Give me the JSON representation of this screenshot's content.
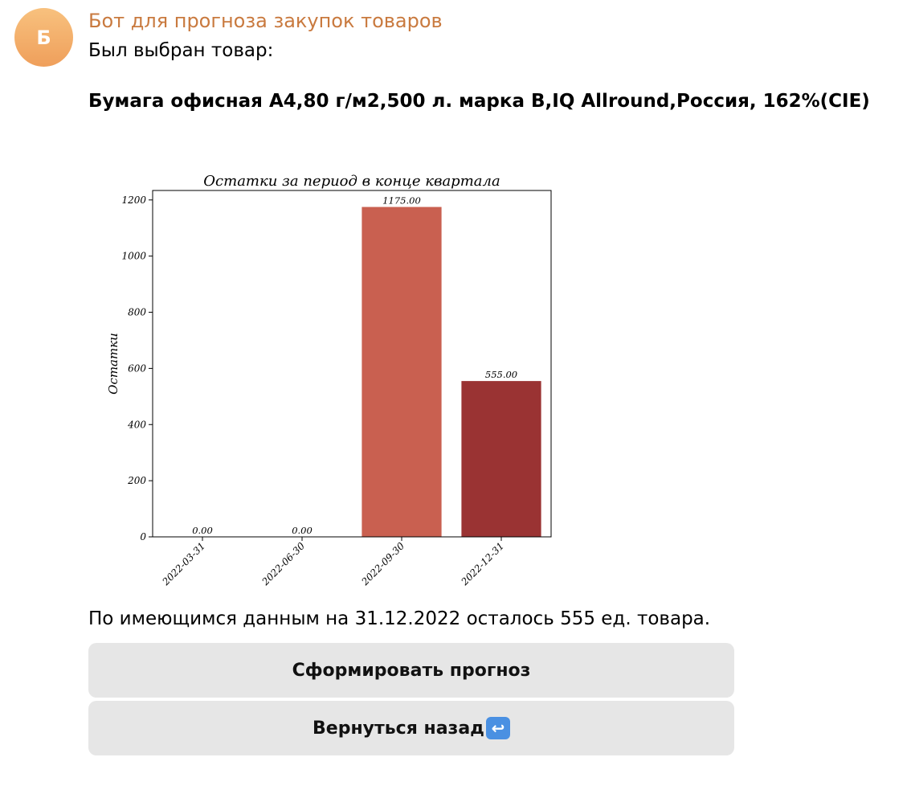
{
  "message": {
    "avatar_letter": "Б",
    "sender": "Бот для прогноза закупок товаров",
    "line1": "Был выбран товар:",
    "product": "Бумага офисная А4,80 г/м2,500 л. марка В,IQ Allround,Россия, 162%(CIE)",
    "summary": "По имеющимся данным на 31.12.2022 осталось 555 ед. товара."
  },
  "buttons": {
    "forecast": "Сформировать прогноз",
    "back": "Вернуться назад",
    "back_icon": "return-arrow-icon"
  },
  "colors": {
    "sender": "#c97a3f",
    "button_bg": "#e6e6e6"
  },
  "chart_data": {
    "type": "bar",
    "title": "Остатки за период в конце квартала",
    "ylabel": "Остатки",
    "xlabel": "",
    "categories": [
      "2022-03-31",
      "2022-06-30",
      "2022-09-30",
      "2022-12-31"
    ],
    "values": [
      0,
      0,
      1175,
      555
    ],
    "value_labels": [
      "0.00",
      "0.00",
      "1175.00",
      "555.00"
    ],
    "colors": [
      "#e8a88f",
      "#dd8a72",
      "#c96050",
      "#9a3333"
    ],
    "yticks": [
      0,
      200,
      400,
      600,
      800,
      1000,
      1200
    ],
    "ylim": [
      0,
      1233.75
    ],
    "grid": false
  }
}
